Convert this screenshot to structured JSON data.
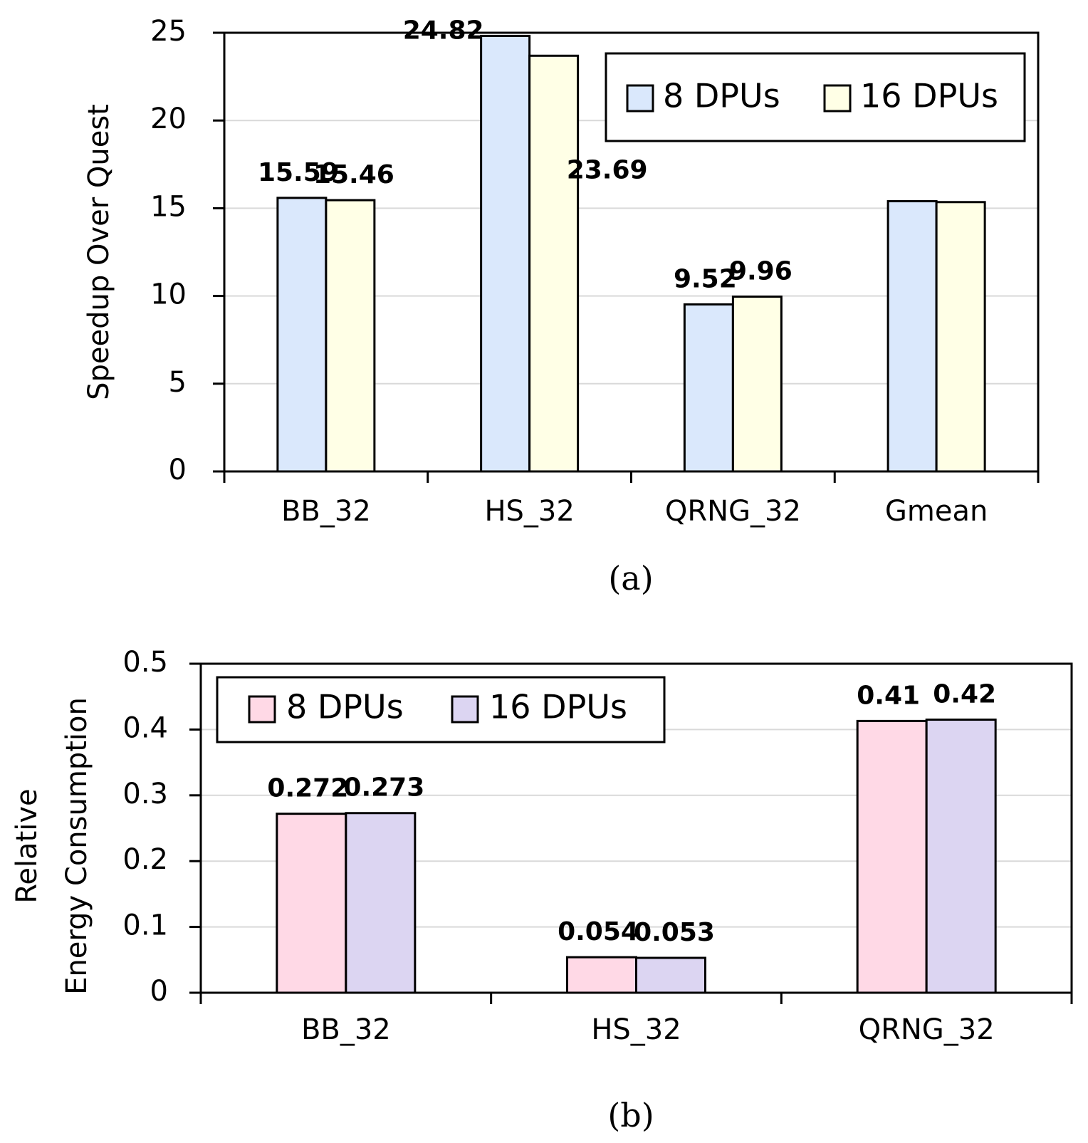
{
  "chart_data": [
    {
      "type": "bar",
      "caption": "(a)",
      "ylabel": "Speedup Over Quest",
      "ylim": [
        0,
        25
      ],
      "yticks": [
        "0",
        "5",
        "10",
        "15",
        "20",
        "25"
      ],
      "grid": true,
      "legend_position": "top-right",
      "categories": [
        "BB_32",
        "HS_32",
        "QRNG_32",
        "Gmean"
      ],
      "series": [
        {
          "name": "8 DPUs",
          "color": "#dae8fc",
          "values": [
            15.59,
            24.82,
            9.52,
            15.4
          ],
          "labels": [
            "15.59",
            "24.82",
            "9.52",
            ""
          ]
        },
        {
          "name": "16 DPUs",
          "color": "#ffffe6",
          "values": [
            15.46,
            23.69,
            9.96,
            15.35
          ],
          "labels": [
            "15.46",
            "23.69",
            "9.96",
            ""
          ]
        }
      ]
    },
    {
      "type": "bar",
      "caption": "(b)",
      "ylabel": [
        "Relative",
        "Energy Consumption"
      ],
      "ylim": [
        0,
        0.5
      ],
      "yticks": [
        "0",
        "0.1",
        "0.2",
        "0.3",
        "0.4",
        "0.5"
      ],
      "grid": true,
      "legend_position": "top-left",
      "categories": [
        "BB_32",
        "HS_32",
        "QRNG_32"
      ],
      "series": [
        {
          "name": "8 DPUs",
          "color": "#ffd9e6",
          "values": [
            0.272,
            0.054,
            0.413
          ],
          "labels": [
            "0.272",
            "0.054",
            "0.41"
          ]
        },
        {
          "name": "16 DPUs",
          "color": "#dcd5f2",
          "values": [
            0.273,
            0.053,
            0.415
          ],
          "labels": [
            "0.273",
            "0.053",
            "0.42"
          ]
        }
      ]
    }
  ]
}
